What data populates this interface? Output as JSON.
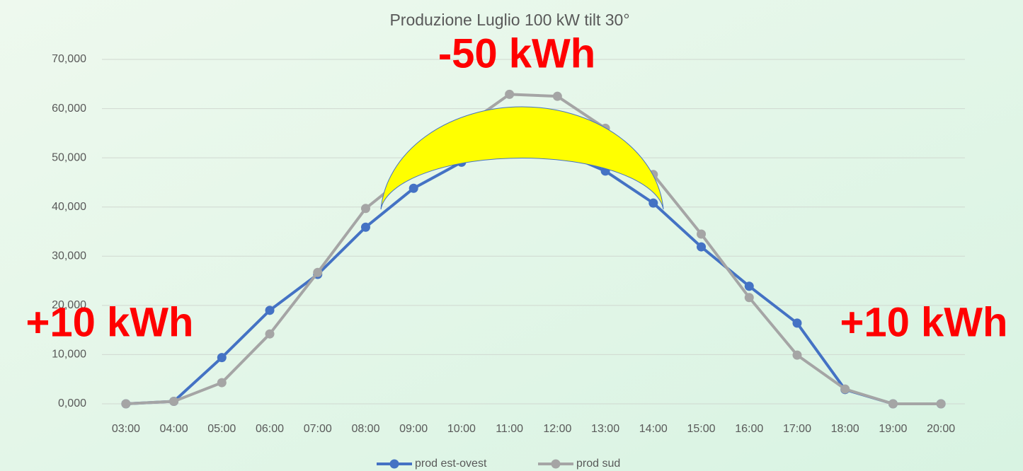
{
  "chart_data": {
    "type": "line",
    "title": "Produzione Luglio 100 kW tilt 30°",
    "categories": [
      "03:00",
      "04:00",
      "05:00",
      "06:00",
      "07:00",
      "08:00",
      "09:00",
      "10:00",
      "11:00",
      "12:00",
      "13:00",
      "14:00",
      "15:00",
      "16:00",
      "17:00",
      "18:00",
      "19:00",
      "20:00"
    ],
    "series": [
      {
        "name": "prod est-ovest",
        "color": "#4472c4",
        "values": [
          0,
          500,
          9400,
          19000,
          26300,
          35900,
          43800,
          49100,
          51500,
          51500,
          47300,
          40800,
          31900,
          23900,
          16400,
          2900,
          0,
          0
        ]
      },
      {
        "name": "prod sud",
        "color": "#a5a5a5",
        "values": [
          0,
          500,
          4300,
          14200,
          26700,
          39700,
          47500,
          56000,
          62900,
          62500,
          56000,
          46600,
          34500,
          21600,
          9900,
          3000,
          0,
          0
        ]
      }
    ],
    "ylim": [
      0,
      70000
    ],
    "yticks": [
      {
        "value": 0,
        "label": "0,000"
      },
      {
        "value": 10000,
        "label": "10,000"
      },
      {
        "value": 20000,
        "label": "20,000"
      },
      {
        "value": 30000,
        "label": "30,000"
      },
      {
        "value": 40000,
        "label": "40,000"
      },
      {
        "value": 50000,
        "label": "50,000"
      },
      {
        "value": 60000,
        "label": "60,000"
      },
      {
        "value": 70000,
        "label": "70,000"
      }
    ],
    "grid": true,
    "legend": "bottom",
    "annotations": [
      "-50 kWh",
      "+10 kWh",
      "+10 kWh"
    ]
  }
}
